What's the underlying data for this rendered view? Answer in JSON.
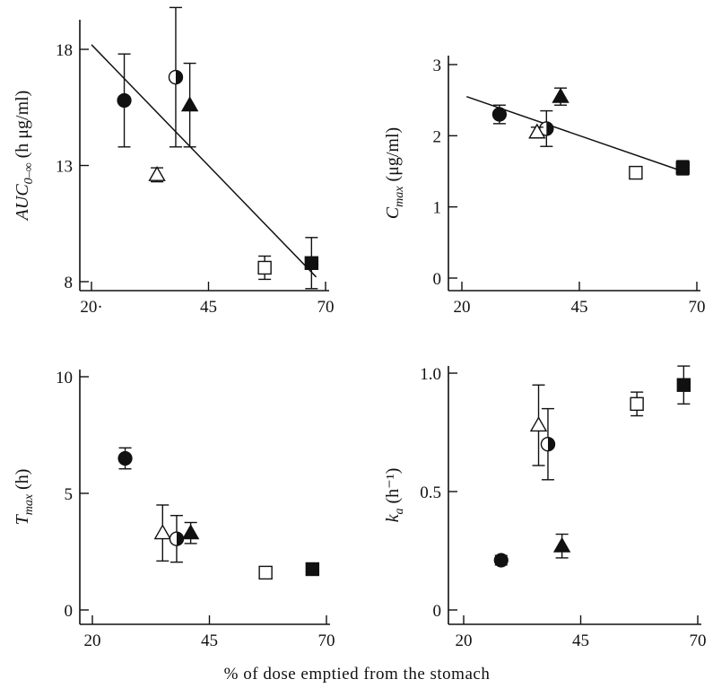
{
  "figure": {
    "x_caption": "% of dose emptied from the stomach"
  },
  "chart_data": [
    {
      "type": "scatter",
      "panel": "top-left",
      "ylabel_main": "AUC",
      "ylabel_sub": "0–∞",
      "ylabel_unit": " (h  μg/ml)",
      "xlim": [
        20,
        70
      ],
      "ylim": [
        8,
        18
      ],
      "x_ticks": [
        20,
        45,
        70
      ],
      "x_tick_labels": [
        "20·",
        "45",
        "70"
      ],
      "y_ticks": [
        8,
        13,
        18
      ],
      "y_tick_labels": [
        "8",
        "13",
        "18"
      ],
      "grid": false,
      "fit_line": [
        [
          20,
          18.2
        ],
        [
          68,
          8.2
        ]
      ],
      "points": [
        {
          "marker": "circle-filled",
          "x": 27,
          "y": 15.8,
          "err": 2.0
        },
        {
          "marker": "circle-half",
          "x": 38,
          "y": 16.8,
          "err": 3.0
        },
        {
          "marker": "triangle-open",
          "x": 34,
          "y": 12.6,
          "err": 0.3
        },
        {
          "marker": "triangle-filled",
          "x": 41,
          "y": 15.6,
          "err": 1.8
        },
        {
          "marker": "square-open",
          "x": 57,
          "y": 8.6,
          "err": 0.5
        },
        {
          "marker": "square-filled",
          "x": 67,
          "y": 8.8,
          "err": 1.1
        }
      ]
    },
    {
      "type": "scatter",
      "panel": "top-right",
      "ylabel_main": "C",
      "ylabel_sub": "max",
      "ylabel_unit": " (μg/ml)",
      "xlim": [
        20,
        70
      ],
      "ylim": [
        0,
        3
      ],
      "x_ticks": [
        20,
        45,
        70
      ],
      "x_tick_labels": [
        "20",
        "45",
        "70"
      ],
      "y_ticks": [
        0,
        1,
        2,
        3
      ],
      "y_tick_labels": [
        "0",
        "1",
        "2",
        "3"
      ],
      "grid": false,
      "fit_line": [
        [
          21,
          2.55
        ],
        [
          67,
          1.5
        ]
      ],
      "points": [
        {
          "marker": "circle-filled",
          "x": 28,
          "y": 2.3,
          "err": 0.13
        },
        {
          "marker": "circle-half",
          "x": 38,
          "y": 2.1,
          "err": 0.25
        },
        {
          "marker": "triangle-open",
          "x": 36,
          "y": 2.05,
          "err": 0.07
        },
        {
          "marker": "triangle-filled",
          "x": 41,
          "y": 2.55,
          "err": 0.12
        },
        {
          "marker": "square-open",
          "x": 57,
          "y": 1.48,
          "err": 0.08
        },
        {
          "marker": "square-filled",
          "x": 67,
          "y": 1.55,
          "err": 0.1
        }
      ]
    },
    {
      "type": "scatter",
      "panel": "bottom-left",
      "ylabel_main": "T",
      "ylabel_sub": "max",
      "ylabel_unit": " (h)",
      "xlim": [
        20,
        70
      ],
      "ylim": [
        0,
        10
      ],
      "x_ticks": [
        20,
        45,
        70
      ],
      "x_tick_labels": [
        "20",
        "45",
        "70"
      ],
      "y_ticks": [
        0,
        5,
        10
      ],
      "y_tick_labels": [
        "0",
        "5",
        "10"
      ],
      "grid": false,
      "points": [
        {
          "marker": "circle-filled",
          "x": 27,
          "y": 6.5,
          "err": 0.45
        },
        {
          "marker": "triangle-open",
          "x": 35,
          "y": 3.3,
          "err": 1.2
        },
        {
          "marker": "circle-half",
          "x": 38,
          "y": 3.05,
          "err": 1.0
        },
        {
          "marker": "triangle-filled",
          "x": 41,
          "y": 3.3,
          "err": 0.45
        },
        {
          "marker": "square-open",
          "x": 57,
          "y": 1.6,
          "err": 0.25
        },
        {
          "marker": "square-filled",
          "x": 67,
          "y": 1.75,
          "err": 0.25
        }
      ]
    },
    {
      "type": "scatter",
      "panel": "bottom-right",
      "ylabel_main": "k",
      "ylabel_sub": "a",
      "ylabel_unit": " (h⁻¹)",
      "xlim": [
        20,
        70
      ],
      "ylim": [
        0,
        1.0
      ],
      "x_ticks": [
        20,
        45,
        70
      ],
      "x_tick_labels": [
        "20",
        "45",
        "70"
      ],
      "y_ticks": [
        0,
        0.5,
        1.0
      ],
      "y_tick_labels": [
        "0",
        "0.5",
        "1.0"
      ],
      "grid": false,
      "points": [
        {
          "marker": "circle-filled",
          "x": 28,
          "y": 0.21,
          "err": 0.02
        },
        {
          "marker": "triangle-open",
          "x": 36,
          "y": 0.78,
          "err": 0.17
        },
        {
          "marker": "circle-half",
          "x": 38,
          "y": 0.7,
          "err": 0.15
        },
        {
          "marker": "triangle-filled",
          "x": 41,
          "y": 0.27,
          "err": 0.05
        },
        {
          "marker": "square-open",
          "x": 57,
          "y": 0.87,
          "err": 0.05
        },
        {
          "marker": "square-filled",
          "x": 67,
          "y": 0.95,
          "err": 0.08
        }
      ]
    }
  ]
}
